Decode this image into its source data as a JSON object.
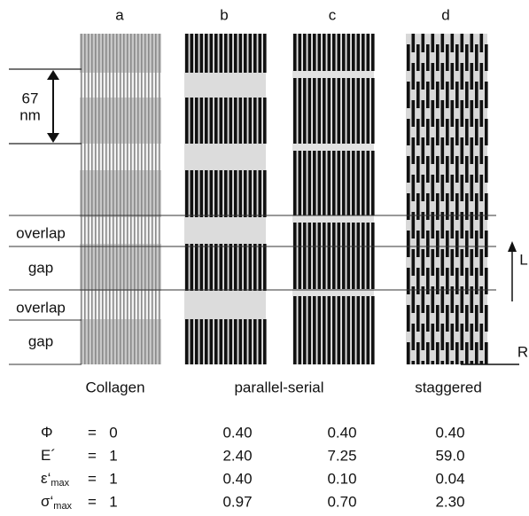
{
  "panels": [
    "a",
    "b",
    "c",
    "d"
  ],
  "scale": {
    "value": "67",
    "unit": "nm"
  },
  "regions": [
    "overlap",
    "gap",
    "overlap",
    "gap"
  ],
  "axes": {
    "longitudinal": "L",
    "radial": "R"
  },
  "models": [
    "Collagen",
    "parallel-serial",
    "staggered"
  ],
  "table": {
    "equals": "=",
    "rows": [
      {
        "symbol": "Φ",
        "values": [
          "0",
          "0.40",
          "0.40",
          "0.40"
        ]
      },
      {
        "symbol": "E´",
        "values": [
          "1",
          "2.40",
          "7.25",
          "59.0"
        ]
      },
      {
        "symbol": "ε‘",
        "sub": "max",
        "values": [
          "1",
          "0.40",
          "0.10",
          "0.04"
        ]
      },
      {
        "symbol": "σ‘",
        "sub": "max",
        "values": [
          "1",
          "0.97",
          "0.70",
          "2.30"
        ]
      }
    ]
  }
}
